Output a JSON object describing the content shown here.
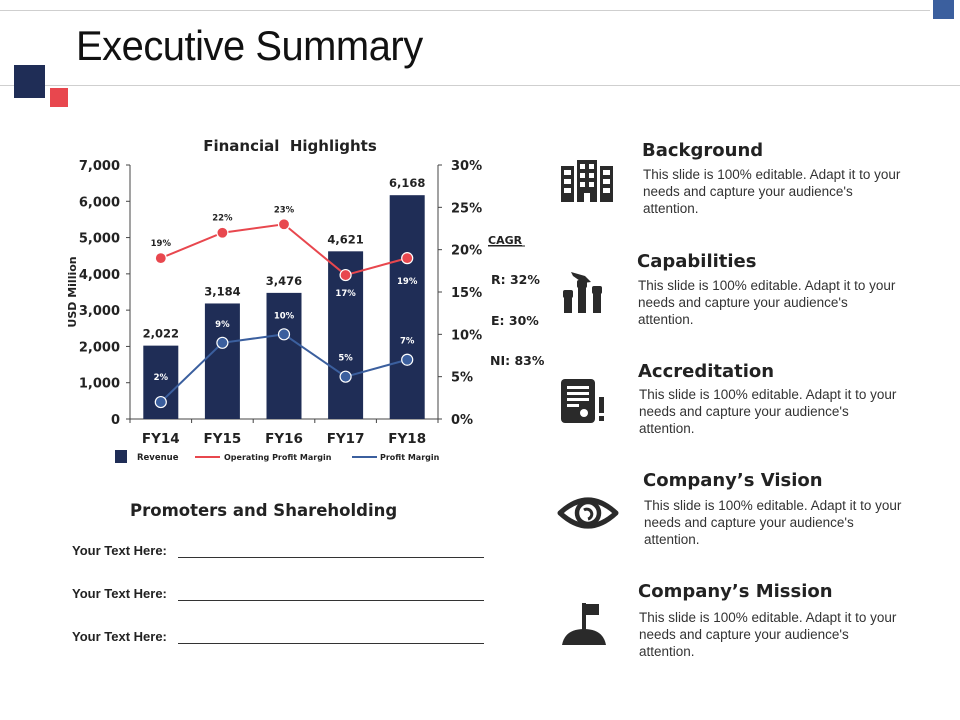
{
  "slide": {
    "title": "Executive Summary",
    "colors": {
      "navy": "#1f2d56",
      "red": "#e8474e",
      "blue_accent": "#3b5f9e",
      "rule": "#cfcfcf"
    }
  },
  "chart_data": {
    "type": "bar+line",
    "title": "Financial  Highlights",
    "categories": [
      "FY14",
      "FY15",
      "FY16",
      "FY17",
      "FY18"
    ],
    "ylabel": "USD Million",
    "ylim": [
      0,
      7000
    ],
    "yticks": [
      "0",
      "1,000",
      "2,000",
      "3,000",
      "4,000",
      "5,000",
      "6,000",
      "7,000"
    ],
    "y2lim": [
      0,
      30
    ],
    "y2ticks": [
      "0%",
      "5%",
      "10%",
      "15%",
      "20%",
      "25%",
      "30%"
    ],
    "series": [
      {
        "name": "Revenue",
        "type": "bar",
        "axis": "left",
        "color": "#1f2d56",
        "values": [
          2022,
          3184,
          3476,
          4621,
          6168
        ],
        "labels": [
          "2,022",
          "3,184",
          "3,476",
          "4,621",
          "6,168"
        ]
      },
      {
        "name": "Operating Profit Margin",
        "type": "line",
        "axis": "right",
        "color": "#e8474e",
        "values": [
          19,
          22,
          23,
          17,
          19
        ],
        "labels": [
          "19%",
          "22%",
          "23%",
          "17%",
          "19%"
        ]
      },
      {
        "name": "Profit Margin",
        "type": "line",
        "axis": "right",
        "color": "#3b5f9e",
        "values": [
          2,
          9,
          10,
          5,
          7
        ],
        "labels": [
          "2%",
          "9%",
          "10%",
          "5%",
          "7%"
        ]
      }
    ],
    "legend": [
      "Revenue",
      "Operating Profit Margin",
      "Profit Margin"
    ],
    "legend_position": "bottom",
    "annotations": {
      "cagr_heading": "CAGR",
      "items": [
        "R: 32%",
        "E: 30%",
        "NI: 83%"
      ]
    },
    "grid": false
  },
  "promoters": {
    "title": "Promoters and Shareholding",
    "rows": [
      {
        "label": "Your Text Here:",
        "value": ""
      },
      {
        "label": "Your Text Here:",
        "value": ""
      },
      {
        "label": "Your Text Here:",
        "value": ""
      }
    ]
  },
  "items": [
    {
      "icon": "building-icon",
      "title": "Background",
      "desc": "This slide is 100% editable. Adapt it to your needs and capture your audience's attention."
    },
    {
      "icon": "raised-fists-icon",
      "title": "Capabilities",
      "desc": "This slide is 100% editable. Adapt it to your needs and capture your audience's attention."
    },
    {
      "icon": "certificate-icon",
      "title": "Accreditation",
      "desc": "This slide is 100% editable. Adapt it to your needs and capture your audience's attention."
    },
    {
      "icon": "eye-icon",
      "title": "Company’s Vision",
      "desc": "This slide is 100% editable. Adapt it to your needs and capture your audience's attention."
    },
    {
      "icon": "flag-on-hill-icon",
      "title": "Company’s Mission",
      "desc": "This slide is 100% editable. Adapt it to your needs and capture your audience's attention."
    }
  ]
}
